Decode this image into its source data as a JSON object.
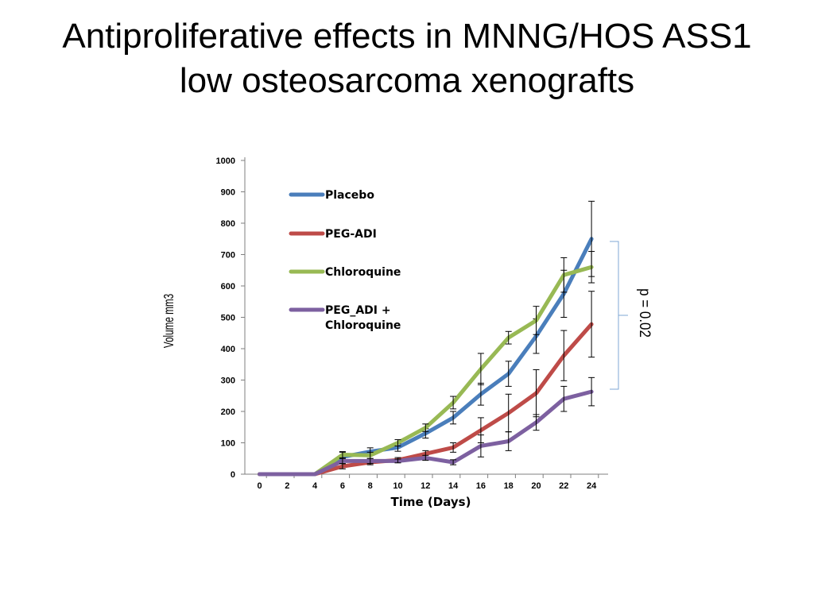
{
  "slide": {
    "title_line1": "Antiproliferative effects in MNNG/HOS ASS1",
    "title_line2": "low osteosarcoma xenografts"
  },
  "chart_data": {
    "type": "line",
    "xlabel": "Time (Days)",
    "ylabel": "Volume mm3",
    "ylim": [
      0,
      1000
    ],
    "yticks": [
      0,
      100,
      200,
      300,
      400,
      500,
      600,
      700,
      800,
      900,
      1000
    ],
    "x": [
      0,
      2,
      4,
      6,
      8,
      10,
      12,
      14,
      16,
      18,
      20,
      22,
      24
    ],
    "grid": false,
    "legend_position": "top-left",
    "series": [
      {
        "name": "Placebo",
        "color": "#4a7ebb",
        "values": [
          0,
          0,
          0,
          55,
          72,
          85,
          130,
          180,
          255,
          320,
          440,
          575,
          750
        ],
        "error": [
          0,
          0,
          0,
          15,
          12,
          12,
          15,
          20,
          35,
          40,
          55,
          75,
          120
        ]
      },
      {
        "name": "PEG-ADI",
        "color": "#be4b48",
        "values": [
          0,
          0,
          0,
          25,
          38,
          45,
          65,
          85,
          140,
          195,
          258,
          378,
          478
        ],
        "error": [
          0,
          0,
          0,
          8,
          8,
          8,
          10,
          15,
          40,
          60,
          75,
          80,
          105
        ]
      },
      {
        "name": "Chloroquine",
        "color": "#98b954",
        "values": [
          0,
          0,
          0,
          62,
          60,
          100,
          148,
          228,
          335,
          435,
          490,
          635,
          660
        ],
        "error": [
          0,
          0,
          0,
          10,
          10,
          10,
          12,
          20,
          50,
          20,
          45,
          55,
          50
        ]
      },
      {
        "name": "PEG_ADI + Chloroquine",
        "name_lines": [
          "PEG_ADI +",
          "Chloroquine"
        ],
        "color": "#7d60a0",
        "values": [
          0,
          0,
          0,
          42,
          42,
          42,
          52,
          38,
          90,
          105,
          165,
          240,
          263
        ],
        "error": [
          0,
          0,
          0,
          8,
          8,
          6,
          8,
          8,
          35,
          30,
          25,
          40,
          45
        ]
      }
    ],
    "annotation": "p = 0.02",
    "bracket_color": "#7fa7d6"
  }
}
